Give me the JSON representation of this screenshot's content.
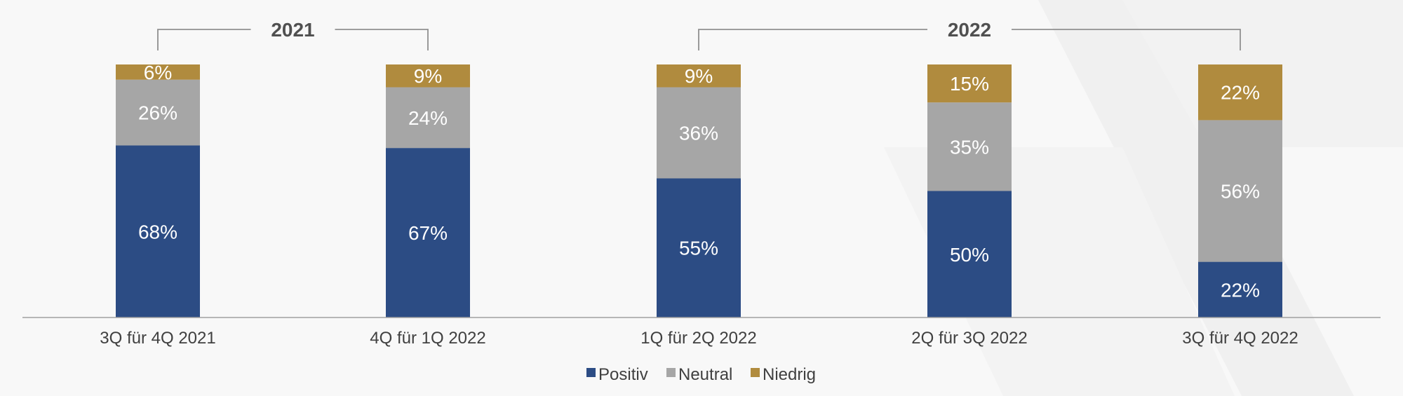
{
  "chart_data": {
    "type": "bar",
    "stacked": true,
    "categories": [
      "3Q für 4Q 2021",
      "4Q für 1Q 2022",
      "1Q für 2Q 2022",
      "2Q für 3Q 2022",
      "3Q für 4Q 2022"
    ],
    "series": [
      {
        "name": "Positiv",
        "values": [
          68,
          67,
          55,
          50,
          22
        ],
        "labels": [
          "68%",
          "67%",
          "55%",
          "50%",
          "22%"
        ],
        "color": "#2c4c84"
      },
      {
        "name": "Neutral",
        "values": [
          26,
          24,
          36,
          35,
          56
        ],
        "labels": [
          "26%",
          "24%",
          "36%",
          "35%",
          "56%"
        ],
        "color": "#a6a6a6"
      },
      {
        "name": "Niedrig",
        "values": [
          6,
          9,
          9,
          15,
          22
        ],
        "labels": [
          "6%",
          "9%",
          "9%",
          "15%",
          "22%"
        ],
        "color": "#b08b3e"
      }
    ],
    "groups": [
      {
        "label": "2021",
        "from": 0,
        "to": 1
      },
      {
        "label": "2022",
        "from": 2,
        "to": 4
      }
    ],
    "ylim": [
      0,
      100
    ],
    "grid": false,
    "legend": "bottom-center",
    "axis_color": "#a0a0a0"
  }
}
